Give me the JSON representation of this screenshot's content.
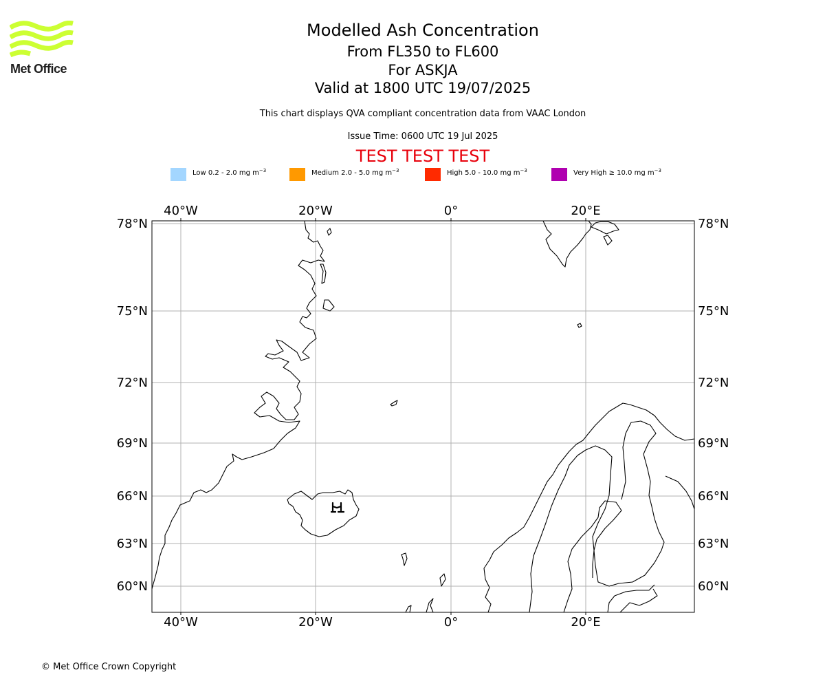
{
  "logo": {
    "text": "Met Office",
    "color": "#ccff33"
  },
  "title": {
    "main": "Modelled Ash Concentration",
    "levels": "From FL350 to FL600",
    "volcano": "For ASKJA",
    "valid": "Valid at 1800 UTC 19/07/2025"
  },
  "subtitle": "This chart displays QVA compliant concentration data from VAAC London",
  "issue_time": "Issue Time: 0600 UTC 19 Jul 2025",
  "test_banner": {
    "text": "TEST TEST TEST",
    "color": "#e8000b"
  },
  "legend": [
    {
      "label": "Low 0.2 - 2.0 mg m",
      "unit_exp": "−3",
      "color": "#a3d6ff"
    },
    {
      "label": "Medium 2.0 - 5.0 mg m",
      "unit_exp": "−3",
      "color": "#ff9900"
    },
    {
      "label": "High 5.0 - 10.0 mg m",
      "unit_exp": "−3",
      "color": "#ff2a00"
    },
    {
      "label": "Very High  ≥  10.0 mg m",
      "unit_exp": "−3",
      "color": "#b000b0"
    }
  ],
  "map": {
    "lon_labels": [
      "40°W",
      "20°W",
      "0°",
      "20°E"
    ],
    "lon_values": [
      -40,
      -20,
      0,
      20
    ],
    "lat_labels": [
      "78°N",
      "75°N",
      "72°N",
      "69°N",
      "66°N",
      "63°N",
      "60°N"
    ],
    "lat_values": [
      78,
      75,
      72,
      69,
      66,
      63,
      60
    ],
    "volcano_marker": {
      "name": "Askja",
      "lat": 65.03,
      "lon": -16.75
    },
    "grid_color": "#b0b0b0"
  },
  "copyright": "© Met Office Crown Copyright"
}
